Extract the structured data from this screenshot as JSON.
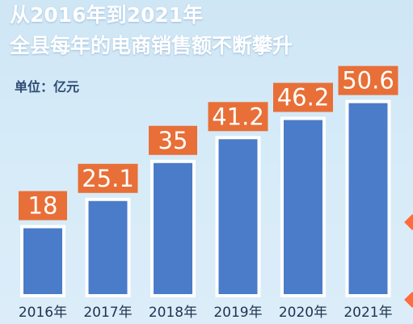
{
  "chart_data": {
    "type": "bar",
    "title": "从2016年到2021年",
    "subtitle": "全县每年的电商销售额不断攀升",
    "unit_label": "单位：亿元",
    "categories": [
      "2016年",
      "2017年",
      "2018年",
      "2019年",
      "2020年",
      "2021年"
    ],
    "values": [
      18,
      25.1,
      35,
      41.2,
      46.2,
      50.6
    ],
    "value_labels": [
      "18",
      "25.1",
      "35",
      "41.2",
      "46.2",
      "50.6"
    ],
    "ylim": [
      0,
      55
    ],
    "grid": false,
    "legend": "none",
    "colors": {
      "bar": "#4a7cc9",
      "bar_border": "#ffffff",
      "label_box": "#e86f37",
      "label_text": "#ffffff",
      "title_text": "#ffffff",
      "tick_text": "#1f3350",
      "accent_arrow": "#ff6b3d"
    }
  }
}
